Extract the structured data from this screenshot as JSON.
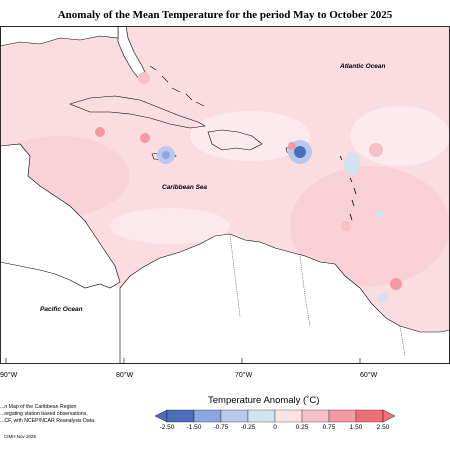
{
  "title": "Anomaly of the Mean Temperature for the period May to October 2025",
  "map": {
    "ocean_labels": [
      "Atlantic Ocean",
      "Caribbean Sea",
      "Pacific Ocean"
    ],
    "longitude_labels": [
      "90°W",
      "80°W",
      "70°W",
      "60°W"
    ]
  },
  "notes": {
    "line1": "...n Map of the Caribbean Region",
    "line2": "...regating station based observations,",
    "line3": "...CF, with NCEP/NCAR Reanalysis Data.",
    "credit": "CIMH Nov 2025"
  },
  "legend": {
    "title": "Temperature Anomaly (˚C)",
    "ticks": [
      "-2.50",
      "-1.50",
      "-0.75",
      "-0.25",
      "0",
      "0.25",
      "0.75",
      "1.50",
      "2.50"
    ],
    "colors": [
      "#4a6fb8",
      "#8ca6de",
      "#b9c8ec",
      "#d2e2ee",
      "#ffffff",
      "#fde3e7",
      "#f6c0c7",
      "#f19aa3",
      "#ef6f76"
    ]
  }
}
